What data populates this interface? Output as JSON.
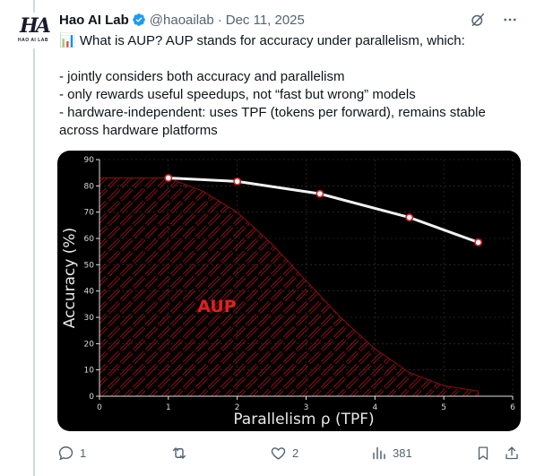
{
  "post": {
    "author_name": "Hao AI Lab",
    "handle": "@haoailab",
    "separator": "·",
    "date": "Dec 11, 2025",
    "avatar_mark": "HA",
    "avatar_sub": "HAO AI LAB",
    "emoji": "📊",
    "text_line1": " What is AUP? AUP stands for accuracy under parallelism, which:",
    "bullets": [
      "- jointly considers both accuracy and parallelism",
      "- only rewards useful speedups, not “fast but wrong” models",
      "- hardware-independent: uses TPF (tokens per forward), remains stable across hardware platforms"
    ]
  },
  "actions": {
    "replies": "1",
    "reposts": "",
    "likes": "2",
    "views": "381"
  },
  "chart_data": {
    "type": "line",
    "xlabel": "Parallelism ρ (TPF)",
    "ylabel": "Accuracy (%)",
    "xlim": [
      0,
      6
    ],
    "ylim": [
      0,
      90
    ],
    "xticks": [
      0,
      1,
      2,
      3,
      4,
      5,
      6
    ],
    "yticks": [
      0,
      10,
      20,
      30,
      40,
      50,
      60,
      70,
      80,
      90
    ],
    "grid": true,
    "annotation": "AUP",
    "series": [
      {
        "x": [
          1,
          2,
          3.2,
          4.5,
          5.5
        ],
        "y": [
          83,
          81.7,
          77,
          68,
          58.5
        ]
      }
    ],
    "aup_region": {
      "x": [
        0,
        1,
        1.5,
        2,
        2.5,
        3,
        3.5,
        4,
        4.5,
        5,
        5.5
      ],
      "y": [
        83,
        83,
        78,
        70,
        58,
        44,
        30,
        18,
        9,
        4,
        2
      ]
    },
    "colors": {
      "line": "#f2f2f2",
      "marker_fill": "#ffffff",
      "marker_edge": "#e0201e",
      "region": "#8b0e12",
      "annotation": "#e0201e",
      "axis": "#e0e0e0",
      "background": "#000000"
    }
  }
}
